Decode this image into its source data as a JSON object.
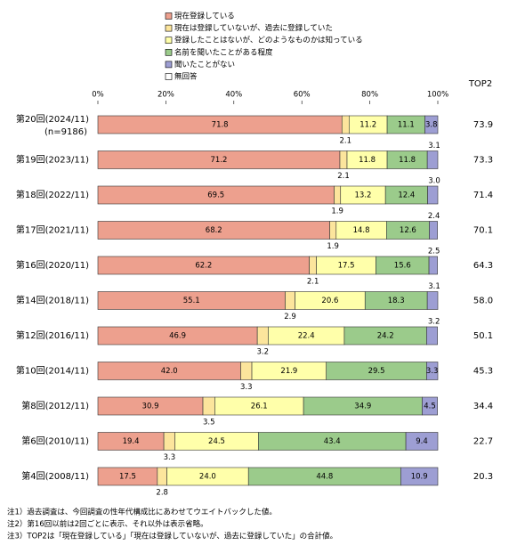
{
  "chart_data": {
    "type": "stacked-bar-horizontal",
    "categories": [
      "第20回(2024/11)",
      "第19回(2023/11)",
      "第18回(2022/11)",
      "第17回(2021/11)",
      "第16回(2020/11)",
      "第14回(2018/11)",
      "第12回(2016/11)",
      "第10回(2014/11)",
      "第8回(2012/11)",
      "第6回(2010/11)",
      "第4回(2008/11)"
    ],
    "first_category_note": "(n=9186)",
    "xlim": [
      0,
      100
    ],
    "xticks": [
      {
        "value": 0,
        "label": "0%"
      },
      {
        "value": 20,
        "label": "20%"
      },
      {
        "value": 40,
        "label": "40%"
      },
      {
        "value": 60,
        "label": "60%"
      },
      {
        "value": 80,
        "label": "80%"
      },
      {
        "value": 100,
        "label": "100%"
      }
    ],
    "series": [
      {
        "name": "現在登録している",
        "color": "#eda08e",
        "values": [
          71.8,
          71.2,
          69.5,
          68.2,
          62.2,
          55.1,
          46.9,
          42.0,
          30.9,
          19.4,
          17.5
        ],
        "value_labels": [
          "71.8",
          "71.2",
          "69.5",
          "68.2",
          "62.2",
          "55.1",
          "46.9",
          "42.0",
          "30.9",
          "19.4",
          "17.5"
        ]
      },
      {
        "name": "現在は登録していないが、過去に登録していた",
        "color": "#fce59c",
        "values": [
          2.1,
          2.1,
          1.9,
          1.9,
          2.1,
          2.9,
          3.2,
          3.3,
          3.5,
          3.3,
          2.8
        ],
        "value_labels": [
          "2.1",
          "2.1",
          "1.9",
          "1.9",
          "2.1",
          "2.9",
          "3.2",
          "3.3",
          "3.5",
          "3.3",
          "2.8"
        ]
      },
      {
        "name": "登録したことはないが、どのようなものかは知っている",
        "color": "#ffffaa",
        "values": [
          11.2,
          11.8,
          13.2,
          14.8,
          17.5,
          20.6,
          22.4,
          21.9,
          26.1,
          24.5,
          24.0
        ],
        "value_labels": [
          "11.2",
          "11.8",
          "13.2",
          "14.8",
          "17.5",
          "20.6",
          "22.4",
          "21.9",
          "26.1",
          "24.5",
          "24.0"
        ]
      },
      {
        "name": "名前を聞いたことがある程度",
        "color": "#9bcb8b",
        "values": [
          11.1,
          11.8,
          12.4,
          12.6,
          15.6,
          18.3,
          24.2,
          29.5,
          34.9,
          43.4,
          44.8
        ],
        "value_labels": [
          "11.1",
          "11.8",
          "12.4",
          "12.6",
          "15.6",
          "18.3",
          "24.2",
          "29.5",
          "34.9",
          "43.4",
          "44.8"
        ]
      },
      {
        "name": "聞いたことがない",
        "color": "#9d9ed3",
        "values": [
          3.8,
          3.1,
          3.0,
          2.4,
          2.5,
          3.1,
          3.2,
          3.3,
          4.5,
          9.4,
          10.9
        ],
        "value_labels": [
          "3.8",
          "3.1",
          "3.0",
          "2.4",
          "2.5",
          "3.1",
          "3.2",
          "3.3",
          "4.5",
          "9.4",
          "10.9"
        ]
      },
      {
        "name": "無回答",
        "color": "#ffffff",
        "values": [
          0,
          0,
          0,
          0,
          0,
          0,
          0,
          0,
          0,
          0,
          0
        ]
      }
    ],
    "top2": {
      "label": "TOP2",
      "values": [
        73.9,
        73.3,
        71.4,
        70.1,
        64.3,
        58.0,
        50.1,
        45.3,
        34.4,
        22.7,
        20.3
      ],
      "value_labels": [
        "73.9",
        "73.3",
        "71.4",
        "70.1",
        "64.3",
        "58.0",
        "50.1",
        "45.3",
        "34.4",
        "22.7",
        "20.3"
      ]
    },
    "notes": [
      "注1）過去調査は、今回調査の性年代構成比にあわせてウエイトバックした値。",
      "注2）第16回以前は2回ごとに表示、それ以外は表示省略。",
      "注3）TOP2は「現在登録している」「現在は登録していないが、過去に登録していた」の合計値。"
    ]
  }
}
